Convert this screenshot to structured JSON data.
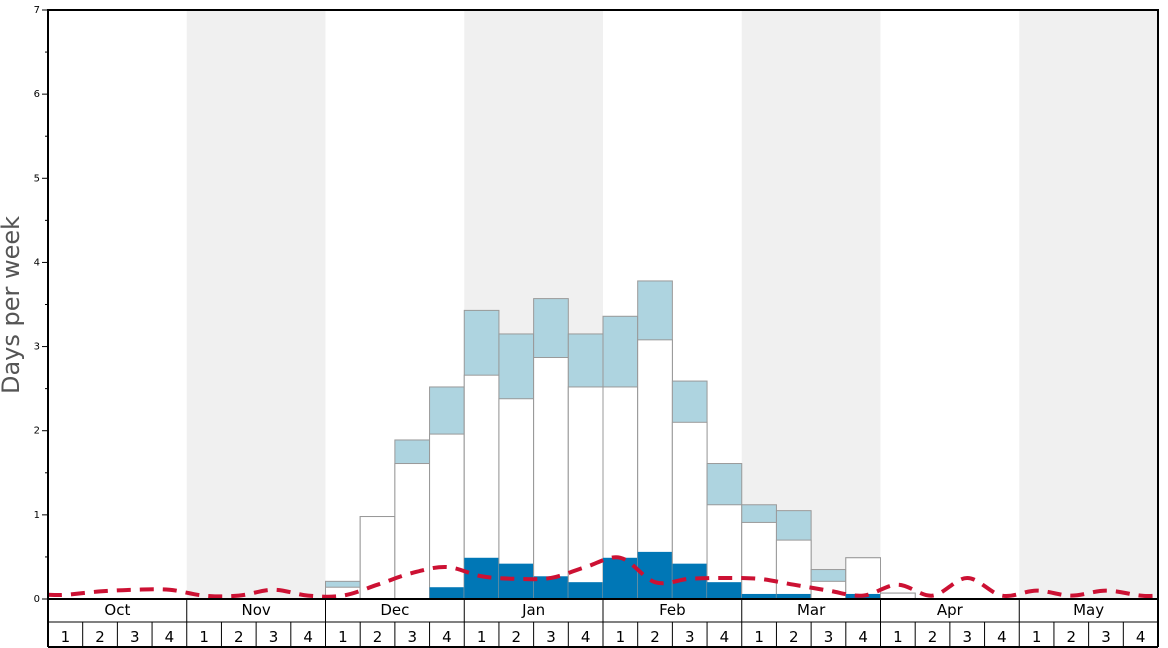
{
  "chart_data": {
    "type": "bar",
    "ylabel": "Days per week",
    "ylim": [
      0,
      7
    ],
    "y_ticks": [
      "0",
      "1",
      "2",
      "3",
      "4",
      "5",
      "6",
      "7"
    ],
    "months": [
      "Oct",
      "Nov",
      "Dec",
      "Jan",
      "Feb",
      "Mar",
      "Apr",
      "May"
    ],
    "weeks": [
      "1",
      "2",
      "3",
      "4"
    ],
    "alternate_month_shading": true,
    "colors": {
      "dark": "#0077b6",
      "light": "#aed4e0",
      "white": "#ffffff",
      "line": "#cc1133",
      "shade": "#f0f0f0"
    },
    "series": [
      {
        "values": [
          0,
          0,
          0,
          0,
          0,
          0,
          0,
          0,
          0,
          0,
          0,
          0.14,
          0.49,
          0.42,
          0.27,
          0.2,
          0.49,
          0.56,
          0.42,
          0.2,
          0.06,
          0.06,
          0,
          0.06,
          0,
          0,
          0,
          0,
          0,
          0,
          0,
          0
        ]
      },
      {
        "values": [
          0,
          0,
          0,
          0,
          0,
          0,
          0,
          0,
          0.14,
          0.98,
          1.61,
          1.96,
          2.66,
          2.38,
          2.87,
          2.52,
          2.52,
          3.08,
          2.1,
          1.12,
          0.91,
          0.7,
          0.21,
          0.49,
          0.07,
          0,
          0,
          0,
          0,
          0,
          0,
          0
        ]
      },
      {
        "values": [
          0,
          0,
          0,
          0,
          0,
          0,
          0,
          0,
          0.21,
          0.98,
          1.89,
          2.52,
          3.43,
          3.15,
          3.57,
          3.15,
          3.36,
          3.78,
          2.59,
          1.61,
          1.12,
          1.05,
          0.35,
          0.49,
          0.07,
          0,
          0,
          0,
          0,
          0,
          0,
          0
        ]
      },
      {
        "values": [
          0.05,
          0.09,
          0.11,
          0.11,
          0.04,
          0.04,
          0.11,
          0.04,
          0.04,
          0.17,
          0.31,
          0.38,
          0.27,
          0.24,
          0.25,
          0.38,
          0.49,
          0.2,
          0.24,
          0.25,
          0.24,
          0.17,
          0.1,
          0.04,
          0.17,
          0.04,
          0.25,
          0.04,
          0.1,
          0.04,
          0.1,
          0.04
        ]
      }
    ]
  }
}
